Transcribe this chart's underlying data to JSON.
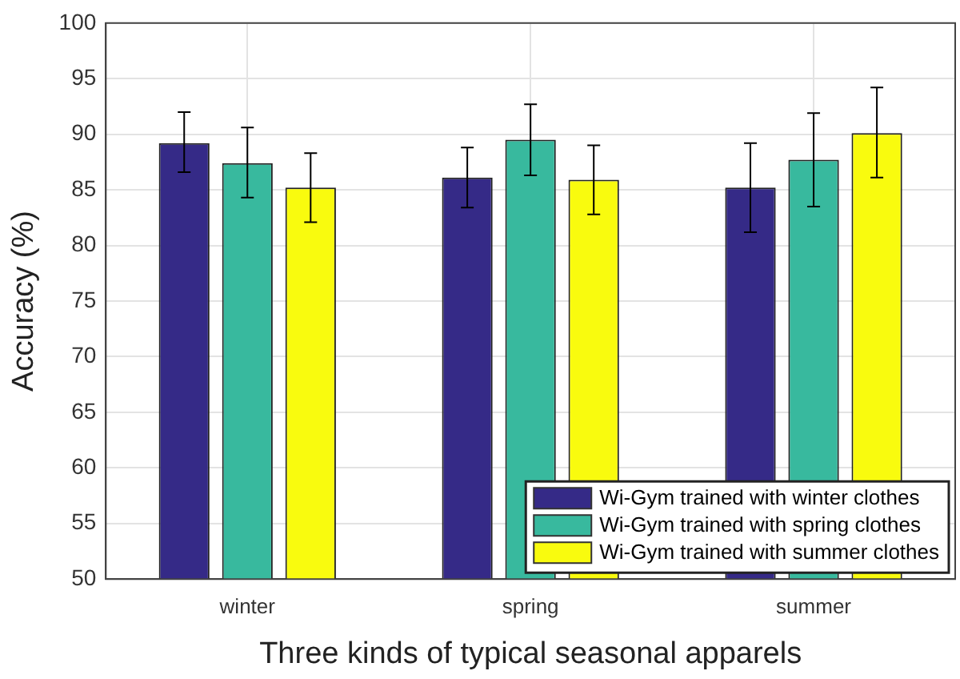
{
  "chart_data": {
    "type": "bar",
    "xlabel": "Three kinds of typical seasonal apparels",
    "ylabel": "Accuracy (%)",
    "categories": [
      "winter",
      "spring",
      "summer"
    ],
    "series": [
      {
        "name": "Wi-Gym trained with winter clothes",
        "color": "#352a87",
        "values": [
          89.2,
          86.1,
          85.2
        ],
        "errors": [
          [
            86.6,
            92.0
          ],
          [
            83.4,
            88.8
          ],
          [
            81.2,
            89.2
          ]
        ]
      },
      {
        "name": "Wi-Gym trained with spring clothes",
        "color": "#38b99e",
        "values": [
          87.4,
          89.5,
          87.7
        ],
        "errors": [
          [
            84.3,
            90.6
          ],
          [
            86.3,
            92.7
          ],
          [
            83.5,
            91.9
          ]
        ]
      },
      {
        "name": "Wi-Gym trained with summer clothes",
        "color": "#f9fb0e",
        "values": [
          85.2,
          85.9,
          90.1
        ],
        "errors": [
          [
            82.1,
            88.3
          ],
          [
            82.8,
            89.0
          ],
          [
            86.1,
            94.2
          ]
        ]
      }
    ],
    "ylim": [
      50,
      100
    ],
    "yticks": [
      50,
      55,
      60,
      65,
      70,
      75,
      80,
      85,
      90,
      95,
      100
    ],
    "grid": true,
    "legend": "bottom right"
  }
}
